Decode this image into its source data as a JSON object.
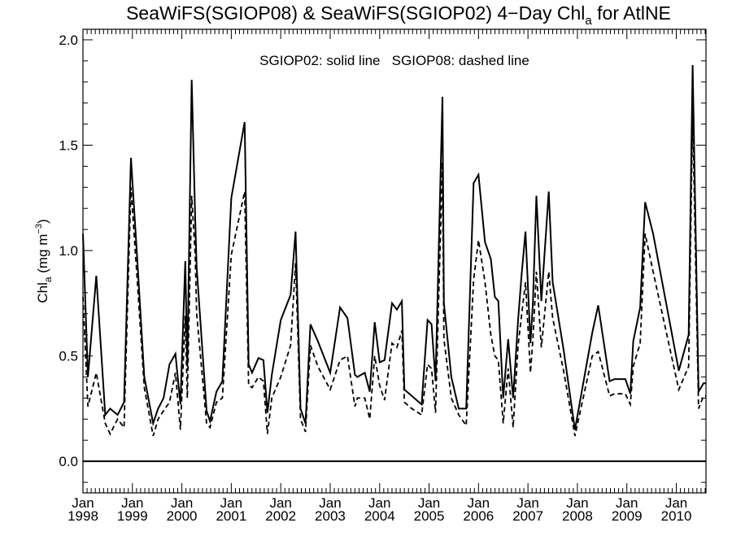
{
  "chart_data": {
    "type": "line",
    "title_parts": {
      "pre": "SeaWiFS(SGIOP08) & SeaWiFS(SGIOP02) 4−Day Chl",
      "sub": "a",
      "post": " for AtlNE"
    },
    "ylabel_parts": {
      "pre": "Chl",
      "sub": "a",
      "mid": " (mg m",
      "sup": "−3",
      "post": ")"
    },
    "legend_text": "SGIOP02: solid line   SGIOP08: dashed line",
    "ylim": [
      -0.15,
      2.05
    ],
    "xlim": [
      1998.0,
      2010.6
    ],
    "y_ticks": [
      "0.0",
      "0.5",
      "1.0",
      "1.5",
      "2.0"
    ],
    "x_tick_month": "Jan",
    "x_ticks": [
      "1998",
      "1999",
      "2000",
      "2001",
      "2002",
      "2003",
      "2004",
      "2005",
      "2006",
      "2007",
      "2008",
      "2009",
      "2010"
    ],
    "zero_line": 0.0,
    "series": [
      {
        "name": "SGIOP02",
        "style": "solid",
        "x": [
          1998.0,
          1998.1,
          1998.27,
          1998.45,
          1998.55,
          1998.7,
          1998.83,
          1998.97,
          1999.1,
          1999.24,
          1999.42,
          1999.52,
          1999.63,
          1999.75,
          1999.87,
          1999.97,
          2000.07,
          2000.11,
          2000.2,
          2000.27,
          2000.3,
          2000.5,
          2000.57,
          2000.7,
          2000.82,
          2001.0,
          2001.27,
          2001.35,
          2001.42,
          2001.55,
          2001.65,
          2001.73,
          2001.82,
          2002.0,
          2002.2,
          2002.3,
          2002.4,
          2002.5,
          2002.6,
          2002.75,
          2003.0,
          2003.2,
          2003.35,
          2003.5,
          2003.55,
          2003.7,
          2003.8,
          2003.9,
          2004.0,
          2004.1,
          2004.25,
          2004.35,
          2004.45,
          2004.5,
          2004.65,
          2004.85,
          2004.97,
          2005.05,
          2005.13,
          2005.27,
          2005.3,
          2005.45,
          2005.6,
          2005.75,
          2005.9,
          2006.0,
          2006.13,
          2006.25,
          2006.33,
          2006.4,
          2006.5,
          2006.6,
          2006.7,
          2006.8,
          2006.87,
          2006.95,
          2007.05,
          2007.1,
          2007.17,
          2007.27,
          2007.42,
          2007.5,
          2007.72,
          2007.95,
          2008.3,
          2008.42,
          2008.65,
          2008.75,
          2008.97,
          2009.07,
          2009.13,
          2009.27,
          2009.37,
          2009.53,
          2010.05,
          2010.25,
          2010.33,
          2010.45,
          2010.55,
          2010.6
        ],
        "values": [
          1.08,
          0.4,
          0.88,
          0.22,
          0.25,
          0.22,
          0.28,
          1.44,
          0.95,
          0.4,
          0.18,
          0.25,
          0.3,
          0.46,
          0.51,
          0.27,
          0.95,
          0.45,
          1.81,
          1.15,
          0.92,
          0.24,
          0.19,
          0.33,
          0.38,
          1.25,
          1.61,
          0.46,
          0.42,
          0.49,
          0.48,
          0.23,
          0.41,
          0.67,
          0.79,
          1.09,
          0.25,
          0.18,
          0.65,
          0.57,
          0.42,
          0.73,
          0.68,
          0.41,
          0.4,
          0.42,
          0.33,
          0.66,
          0.47,
          0.48,
          0.75,
          0.72,
          0.76,
          0.34,
          0.31,
          0.27,
          0.67,
          0.65,
          0.38,
          1.73,
          0.75,
          0.4,
          0.25,
          0.25,
          1.32,
          1.36,
          1.04,
          0.96,
          0.78,
          0.76,
          0.3,
          0.58,
          0.3,
          0.67,
          0.88,
          1.09,
          0.56,
          0.75,
          1.26,
          0.76,
          1.28,
          0.85,
          0.53,
          0.15,
          0.61,
          0.74,
          0.38,
          0.39,
          0.39,
          0.32,
          0.57,
          0.73,
          1.23,
          1.08,
          0.43,
          0.6,
          1.88,
          0.33,
          0.37,
          0.37
        ]
      },
      {
        "name": "SGIOP08",
        "style": "dashed",
        "x": [
          1998.0,
          1998.1,
          1998.27,
          1998.45,
          1998.55,
          1998.7,
          1998.83,
          1998.97,
          1999.1,
          1999.24,
          1999.42,
          1999.52,
          1999.63,
          1999.75,
          1999.87,
          1999.97,
          2000.07,
          2000.11,
          2000.2,
          2000.27,
          2000.3,
          2000.5,
          2000.57,
          2000.7,
          2000.82,
          2001.0,
          2001.27,
          2001.35,
          2001.42,
          2001.55,
          2001.65,
          2001.73,
          2001.82,
          2002.0,
          2002.2,
          2002.3,
          2002.4,
          2002.5,
          2002.6,
          2002.75,
          2003.0,
          2003.2,
          2003.35,
          2003.5,
          2003.55,
          2003.7,
          2003.8,
          2003.9,
          2004.0,
          2004.1,
          2004.25,
          2004.35,
          2004.45,
          2004.5,
          2004.65,
          2004.85,
          2004.97,
          2005.05,
          2005.13,
          2005.27,
          2005.3,
          2005.45,
          2005.6,
          2005.75,
          2005.9,
          2006.0,
          2006.13,
          2006.25,
          2006.33,
          2006.4,
          2006.5,
          2006.6,
          2006.7,
          2006.8,
          2006.87,
          2006.95,
          2007.05,
          2007.1,
          2007.17,
          2007.27,
          2007.42,
          2007.5,
          2007.72,
          2007.95,
          2008.3,
          2008.42,
          2008.65,
          2008.75,
          2008.97,
          2009.07,
          2009.13,
          2009.27,
          2009.37,
          2009.53,
          2010.05,
          2010.25,
          2010.33,
          2010.45,
          2010.55,
          2010.6
        ],
        "values": [
          0.78,
          0.26,
          0.42,
          0.18,
          0.13,
          0.2,
          0.16,
          1.3,
          0.85,
          0.35,
          0.12,
          0.2,
          0.24,
          0.28,
          0.42,
          0.15,
          0.69,
          0.3,
          1.26,
          0.98,
          0.7,
          0.18,
          0.16,
          0.28,
          0.3,
          0.98,
          1.28,
          0.36,
          0.35,
          0.4,
          0.38,
          0.13,
          0.3,
          0.4,
          0.55,
          0.94,
          0.2,
          0.14,
          0.55,
          0.45,
          0.34,
          0.48,
          0.5,
          0.26,
          0.3,
          0.3,
          0.2,
          0.5,
          0.36,
          0.29,
          0.56,
          0.54,
          0.62,
          0.28,
          0.25,
          0.22,
          0.46,
          0.44,
          0.23,
          1.42,
          0.58,
          0.3,
          0.22,
          0.17,
          0.86,
          1.05,
          0.85,
          0.6,
          0.5,
          0.48,
          0.18,
          0.44,
          0.16,
          0.55,
          0.69,
          0.85,
          0.42,
          0.58,
          0.9,
          0.54,
          0.9,
          0.68,
          0.43,
          0.12,
          0.5,
          0.52,
          0.31,
          0.32,
          0.32,
          0.27,
          0.45,
          0.56,
          1.08,
          0.9,
          0.34,
          0.45,
          1.66,
          0.25,
          0.31,
          0.31
        ]
      }
    ]
  }
}
